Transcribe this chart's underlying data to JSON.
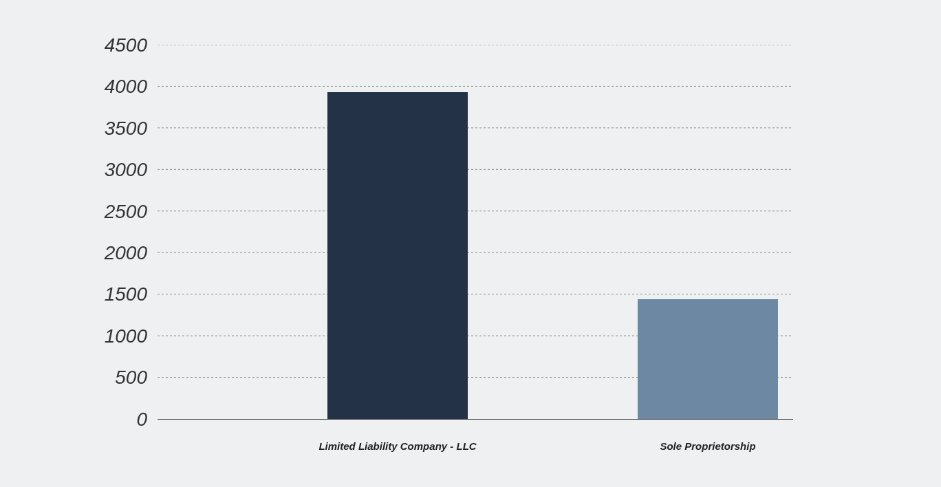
{
  "chart_data": {
    "type": "bar",
    "categories": [
      "Limited Liability Company - LLC",
      "Sole Proprietorship"
    ],
    "values": [
      3930,
      1440
    ],
    "colors": [
      "#233246",
      "#6d88a3"
    ],
    "ylim": [
      0,
      4500
    ],
    "yticks": [
      0,
      500,
      1000,
      1500,
      2000,
      2500,
      3000,
      3500,
      4000,
      4500
    ],
    "grid": "y"
  }
}
